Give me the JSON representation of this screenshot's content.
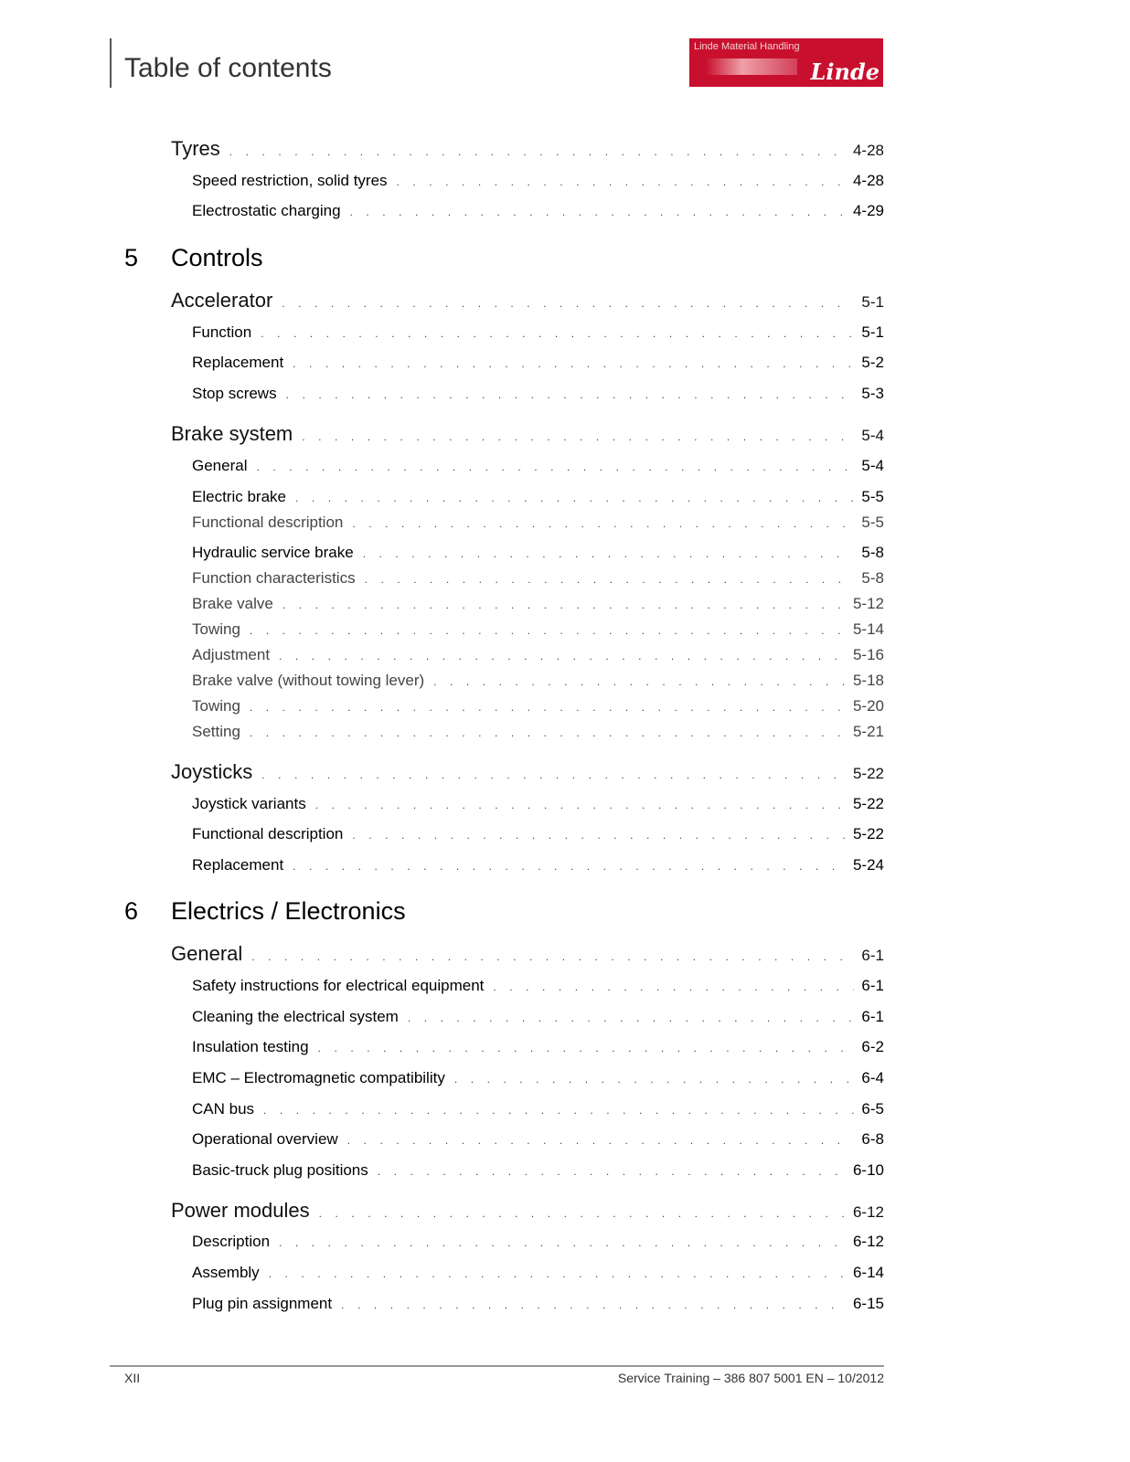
{
  "header": {
    "title": "Table of contents",
    "logo_text": "Linde Material Handling",
    "logo_brand": "Linde",
    "brand_color": "#c8102e"
  },
  "chapters": [
    {
      "number": "5",
      "title": "Controls"
    },
    {
      "number": "6",
      "title": "Electrics / Electronics"
    }
  ],
  "entries": [
    {
      "level": 1,
      "label": "Tyres",
      "page": "4-28"
    },
    {
      "level": 2,
      "label": "Speed restriction, solid tyres",
      "page": "4-28"
    },
    {
      "level": 2,
      "label": "Electrostatic charging",
      "page": "4-29"
    },
    {
      "level": 1,
      "label": "Accelerator",
      "page": "5-1"
    },
    {
      "level": 2,
      "label": "Function",
      "page": "5-1"
    },
    {
      "level": 2,
      "label": "Replacement",
      "page": "5-2"
    },
    {
      "level": 2,
      "label": "Stop screws",
      "page": "5-3"
    },
    {
      "level": 1,
      "label": "Brake system",
      "page": "5-4"
    },
    {
      "level": 2,
      "label": "General",
      "page": "5-4"
    },
    {
      "level": 2,
      "label": "Electric brake",
      "page": "5-5"
    },
    {
      "level": 3,
      "label": "Functional description",
      "page": "5-5"
    },
    {
      "level": 2,
      "label": "Hydraulic service brake",
      "page": "5-8"
    },
    {
      "level": 3,
      "label": "Function characteristics",
      "page": "5-8"
    },
    {
      "level": 3,
      "label": "Brake valve",
      "page": "5-12"
    },
    {
      "level": 3,
      "label": "Towing",
      "page": "5-14"
    },
    {
      "level": 3,
      "label": "Adjustment",
      "page": "5-16"
    },
    {
      "level": 3,
      "label": "Brake valve (without towing lever)",
      "page": "5-18"
    },
    {
      "level": 3,
      "label": "Towing",
      "page": "5-20"
    },
    {
      "level": 3,
      "label": "Setting",
      "page": "5-21"
    },
    {
      "level": 1,
      "label": "Joysticks",
      "page": "5-22"
    },
    {
      "level": 2,
      "label": "Joystick variants",
      "page": "5-22"
    },
    {
      "level": 2,
      "label": "Functional description",
      "page": "5-22"
    },
    {
      "level": 2,
      "label": "Replacement",
      "page": "5-24"
    },
    {
      "level": 1,
      "label": "General",
      "page": "6-1"
    },
    {
      "level": 2,
      "label": "Safety instructions for electrical equipment",
      "page": "6-1"
    },
    {
      "level": 2,
      "label": "Cleaning the electrical system",
      "page": "6-1"
    },
    {
      "level": 2,
      "label": "Insulation testing",
      "page": "6-2"
    },
    {
      "level": 2,
      "label": "EMC – Electromagnetic compatibility",
      "page": "6-4"
    },
    {
      "level": 2,
      "label": "CAN bus",
      "page": "6-5"
    },
    {
      "level": 2,
      "label": "Operational overview",
      "page": "6-8"
    },
    {
      "level": 2,
      "label": "Basic-truck plug positions",
      "page": "6-10"
    },
    {
      "level": 1,
      "label": "Power modules",
      "page": "6-12"
    },
    {
      "level": 2,
      "label": "Description",
      "page": "6-12"
    },
    {
      "level": 2,
      "label": "Assembly",
      "page": "6-14"
    },
    {
      "level": 2,
      "label": "Plug pin assignment",
      "page": "6-15"
    }
  ],
  "footer": {
    "page_number": "XII",
    "document": "Service Training – 386 807 5001 EN – 10/2012"
  }
}
